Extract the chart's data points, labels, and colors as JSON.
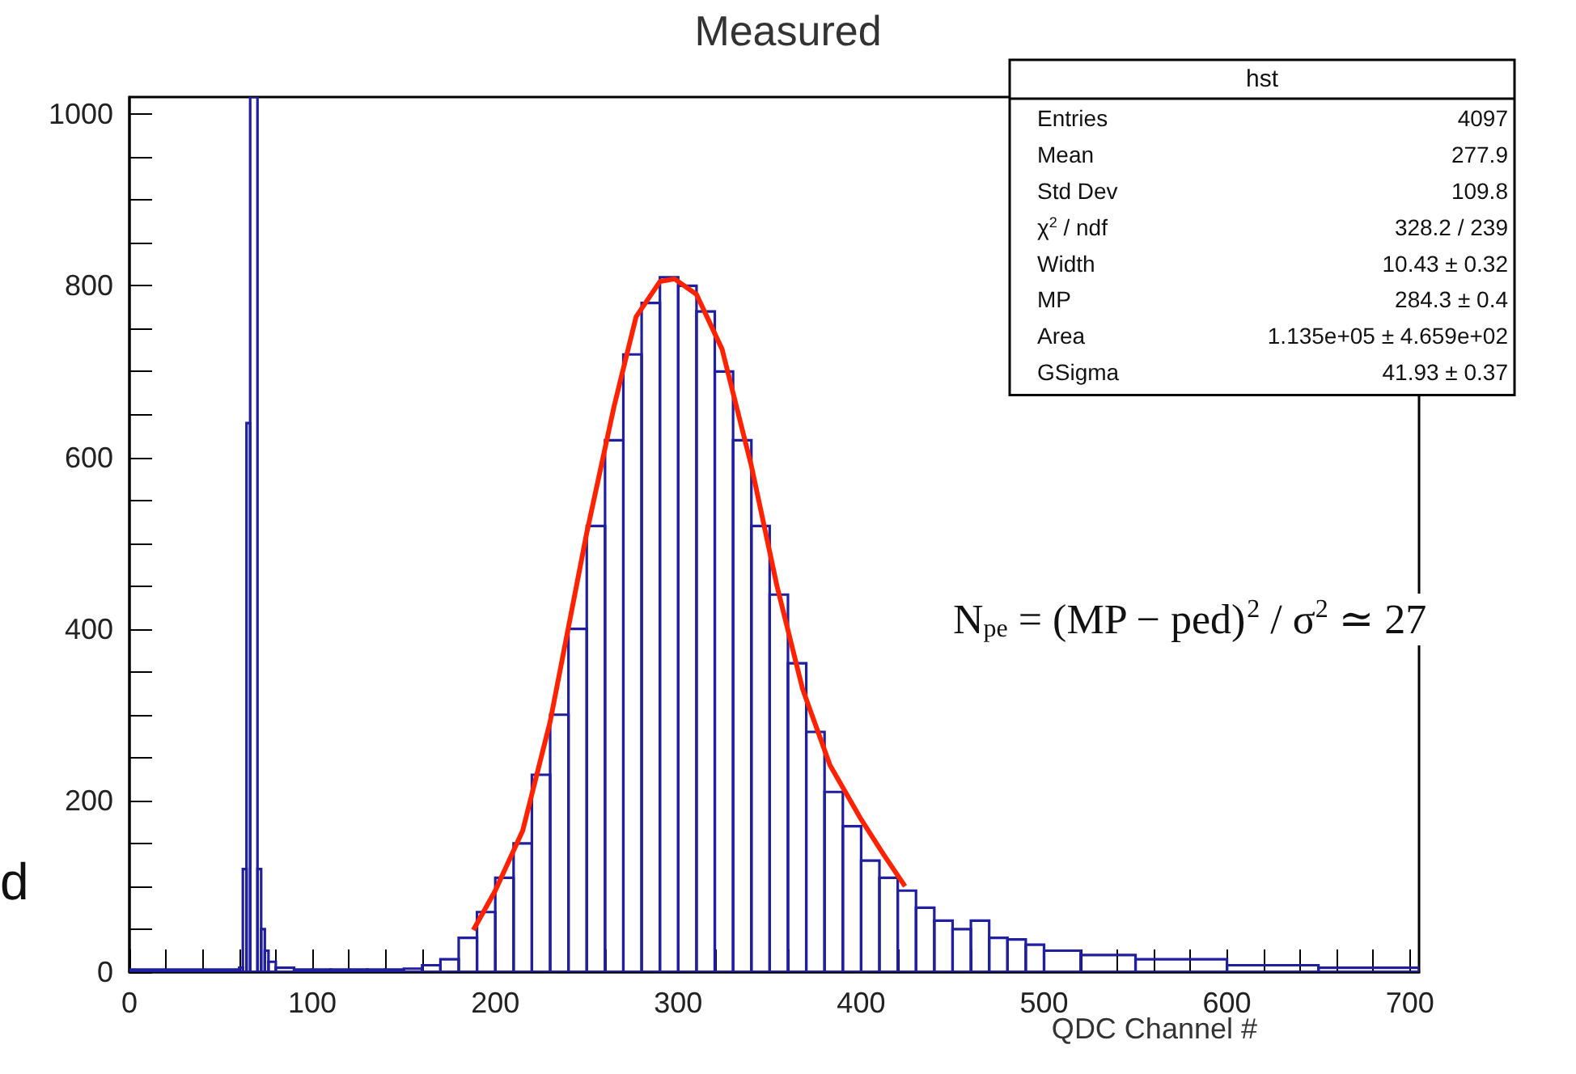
{
  "chart_data": {
    "type": "histogram",
    "title": "Measured",
    "xlabel": "QDC Channel #",
    "bins": [
      0,
      60,
      62,
      64,
      66,
      70,
      72,
      74,
      76,
      80,
      90,
      100,
      110,
      120,
      130,
      140,
      150,
      160,
      170,
      180,
      190,
      200,
      210,
      220,
      230,
      240,
      250,
      260,
      270,
      280,
      290,
      300,
      310,
      320,
      330,
      340,
      350,
      360,
      370,
      380,
      390,
      400,
      410,
      420,
      430,
      440,
      450,
      460,
      470,
      480,
      490,
      500,
      520,
      550,
      600,
      650,
      705
    ],
    "series": [
      {
        "color": "#1f1fa0",
        "values": [
          3,
          5,
          120,
          640,
          1020,
          120,
          50,
          25,
          12,
          5,
          3,
          3,
          3,
          3,
          3,
          3,
          4,
          8,
          15,
          40,
          70,
          110,
          150,
          230,
          300,
          400,
          520,
          620,
          720,
          780,
          810,
          800,
          770,
          700,
          620,
          520,
          440,
          360,
          280,
          210,
          170,
          130,
          110,
          95,
          75,
          60,
          50,
          60,
          40,
          38,
          32,
          25,
          20,
          15,
          8,
          5
        ]
      },
      {
        "type": "line",
        "color": "#ff2200",
        "x": [
          188,
          200,
          215,
          230,
          250,
          265,
          277,
          290,
          298,
          310,
          324,
          340,
          354,
          368,
          383,
          400,
          412,
          424
        ],
        "values": [
          49,
          95,
          165,
          292,
          512,
          660,
          764,
          805,
          808,
          790,
          726,
          590,
          450,
          330,
          241,
          178,
          138,
          100
        ]
      }
    ],
    "xlim": [
      0,
      705
    ],
    "ylim": [
      0,
      1020
    ],
    "xticks": [
      0,
      100,
      200,
      300,
      400,
      500,
      600,
      700
    ],
    "yticks": [
      0,
      200,
      400,
      600,
      800,
      1000
    ],
    "grid": false,
    "annotations": [
      "hst",
      "Entries",
      "4097",
      "Mean",
      "277.9",
      "Std Dev",
      "109.8",
      "χ$^{2}$ / ndf",
      "328.2 / 239",
      "Width",
      "10.43 ± 0.32",
      "MP",
      "284.3 ± 0.4",
      "Area",
      "1.135e+05 ± 4.659e+02",
      "GSigma",
      "41.93 ± 0.37",
      "N$_{pe}$ = (MP − ped)$^{2}$ / σ$^{2}$ ≃ 27",
      "d"
    ]
  }
}
